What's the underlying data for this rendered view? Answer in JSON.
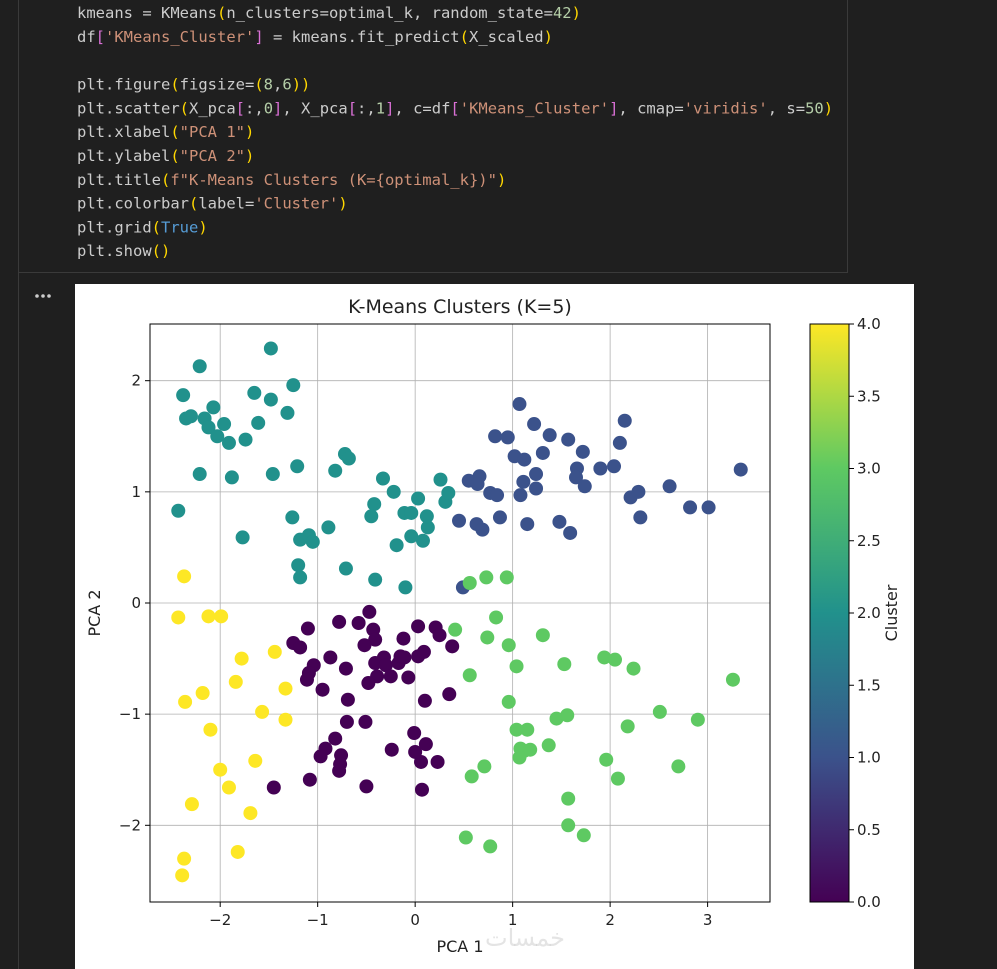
{
  "code_blocks": [
    [
      "kmeans = KMeans(n_clusters=optimal_k, random_state=42)",
      "df['KMeans_Cluster'] = kmeans.fit_predict(X_scaled)"
    ],
    [
      "plt.figure(figsize=(8,6))",
      "plt.scatter(X_pca[:,0], X_pca[:,1], c=df['KMeans_Cluster'], cmap='viridis', s=50)",
      "plt.xlabel(\"PCA 1\")",
      "plt.ylabel(\"PCA 2\")",
      "plt.title(f\"K-Means Clusters (K={optimal_k})\")",
      "plt.colorbar(label='Cluster')",
      "plt.grid(True)",
      "plt.show()"
    ]
  ],
  "watermark": "خمسات",
  "chart_data": {
    "type": "scatter",
    "title": "K-Means Clusters (K=5)",
    "x_label": "PCA 1",
    "y_label": "PCA 2",
    "colorbar_label": "Cluster",
    "colormap": "viridis",
    "clim": [
      0,
      4
    ],
    "cticks": [
      {
        "value": 0,
        "label": "0.0"
      },
      0.5,
      {
        "value": 1,
        "label": "1.0"
      },
      1.5,
      {
        "value": 2,
        "label": "2.0"
      },
      2.5,
      {
        "value": 3,
        "label": "3.0"
      },
      3.5,
      {
        "value": 4,
        "label": "4.0"
      }
    ],
    "xlim": [
      -2.72,
      3.64
    ],
    "ylim": [
      -2.69,
      2.51
    ],
    "xticks": [
      {
        "value": -2,
        "label": "−2"
      },
      {
        "value": -1,
        "label": "−1"
      },
      0,
      1,
      2,
      3
    ],
    "yticks": [
      {
        "value": -2,
        "label": "−2"
      },
      {
        "value": -1,
        "label": "−1"
      },
      0,
      1,
      2
    ],
    "grid": true,
    "x": [
      -1.48,
      -2.21,
      -2.38,
      -2.07,
      -2.16,
      -2.35,
      -2.3,
      -2.12,
      -1.96,
      -2.03,
      -1.91,
      -1.74,
      -1.61,
      -1.65,
      -1.48,
      -1.25,
      -1.31,
      -2.21,
      -1.88,
      -1.46,
      -1.21,
      -1.77,
      -1.26,
      -1.18,
      -1.09,
      -1.05,
      -0.89,
      -1.2,
      -1.18,
      -0.71,
      -0.41,
      -0.1,
      -2.43,
      -0.82,
      -0.72,
      -0.68,
      -0.33,
      -0.42,
      -0.45,
      -0.22,
      -0.11,
      0.03,
      -0.04,
      -0.19,
      0.08,
      0.13,
      -0.04,
      0.12,
      0.26,
      0.31,
      0.34,
      1.07,
      1.22,
      1.38,
      1.57,
      1.72,
      1.66,
      1.65,
      1.74,
      1.9,
      2.04,
      2.1,
      2.15,
      2.21,
      2.29,
      2.31,
      2.61,
      2.82,
      3.01,
      3.34,
      0.82,
      0.95,
      1.02,
      1.12,
      1.31,
      1.24,
      1.24,
      1.08,
      1.11,
      1.48,
      1.59,
      0.77,
      0.84,
      0.66,
      0.55,
      0.64,
      0.45,
      0.63,
      0.69,
      0.87,
      1.15,
      0.49,
      -0.47,
      -0.58,
      -0.78,
      -1.1,
      -1.25,
      -1.18,
      -1.04,
      -1.09,
      -1.11,
      -0.95,
      -0.71,
      -0.87,
      -0.43,
      -0.41,
      -0.52,
      -0.32,
      -0.41,
      -0.3,
      -0.17,
      -0.12,
      -0.15,
      -0.11,
      0.03,
      0.03,
      0.21,
      0.25,
      0.38,
      -0.39,
      -0.48,
      -0.25,
      -0.07,
      0.1,
      0.35,
      -0.69,
      -0.7,
      -0.51,
      -0.82,
      -0.92,
      -0.97,
      -0.76,
      -0.77,
      -1.08,
      -0.78,
      -1.45,
      -0.5,
      -0.24,
      -0.01,
      0.11,
      0.23,
      0.06,
      0.0,
      0.07,
      0.09,
      0.56,
      0.73,
      0.94,
      0.83,
      0.41,
      0.74,
      0.96,
      1.31,
      1.04,
      0.56,
      0.96,
      1.53,
      1.94,
      2.05,
      2.24,
      3.26,
      1.45,
      1.56,
      1.04,
      1.08,
      1.15,
      1.12,
      1.37,
      1.07,
      1.18,
      2.18,
      2.51,
      2.9,
      1.96,
      2.08,
      2.7,
      0.58,
      0.71,
      1.57,
      1.57,
      1.73,
      0.52,
      0.77,
      -2.37,
      -2.43,
      -2.12,
      -1.99,
      -1.78,
      -1.44,
      -1.84,
      -2.18,
      -2.36,
      -1.33,
      -2.1,
      -1.57,
      -1.33,
      -1.64,
      -2.0,
      -1.91,
      -2.29,
      -1.69,
      -1.82,
      -2.37,
      -2.39
    ],
    "y": [
      2.29,
      2.13,
      1.87,
      1.76,
      1.66,
      1.66,
      1.68,
      1.58,
      1.61,
      1.5,
      1.44,
      1.47,
      1.62,
      1.89,
      1.83,
      1.96,
      1.71,
      1.16,
      1.13,
      1.16,
      1.23,
      0.59,
      0.77,
      0.57,
      0.61,
      0.55,
      0.68,
      0.34,
      0.23,
      0.31,
      0.21,
      0.14,
      0.83,
      1.19,
      1.34,
      1.3,
      1.12,
      0.89,
      0.78,
      1.0,
      0.81,
      0.94,
      0.81,
      0.52,
      0.56,
      0.68,
      0.6,
      0.78,
      1.11,
      0.91,
      0.99,
      1.79,
      1.61,
      1.51,
      1.47,
      1.36,
      1.21,
      1.13,
      1.05,
      1.21,
      1.23,
      1.44,
      1.64,
      0.95,
      1.0,
      0.77,
      1.05,
      0.86,
      0.86,
      1.2,
      1.5,
      1.49,
      1.32,
      1.29,
      1.35,
      1.03,
      1.16,
      0.97,
      1.09,
      0.73,
      0.63,
      0.99,
      0.97,
      1.14,
      1.1,
      1.07,
      0.74,
      0.71,
      0.66,
      0.77,
      0.71,
      0.14,
      -0.08,
      -0.18,
      -0.17,
      -0.23,
      -0.36,
      -0.4,
      -0.56,
      -0.63,
      -0.69,
      -0.78,
      -0.59,
      -0.49,
      -0.24,
      -0.33,
      -0.38,
      -0.49,
      -0.54,
      -0.56,
      -0.54,
      -0.32,
      -0.48,
      -0.49,
      -0.48,
      -0.21,
      -0.22,
      -0.29,
      -0.39,
      -0.66,
      -0.72,
      -0.66,
      -0.67,
      -0.88,
      -0.82,
      -0.87,
      -1.07,
      -1.07,
      -1.22,
      -1.31,
      -1.38,
      -1.37,
      -1.45,
      -1.59,
      -1.51,
      -1.66,
      -1.65,
      -1.32,
      -1.17,
      -1.27,
      -1.43,
      -1.43,
      -1.34,
      -1.68,
      -0.44,
      0.18,
      0.23,
      0.23,
      -0.13,
      -0.24,
      -0.31,
      -0.38,
      -0.29,
      -0.57,
      -0.65,
      -0.89,
      -0.55,
      -0.49,
      -0.51,
      -0.59,
      -0.69,
      -1.04,
      -1.01,
      -1.14,
      -1.31,
      -1.14,
      -1.33,
      -1.28,
      -1.39,
      -1.32,
      -1.11,
      -0.98,
      -1.05,
      -1.41,
      -1.58,
      -1.47,
      -1.56,
      -1.47,
      -1.76,
      -2.0,
      -2.09,
      -2.11,
      -2.19,
      0.24,
      -0.13,
      -0.12,
      -0.12,
      -0.5,
      -0.44,
      -0.71,
      -0.81,
      -0.89,
      -0.77,
      -1.14,
      -0.98,
      -1.05,
      -1.42,
      -1.5,
      -1.66,
      -1.81,
      -1.89,
      -2.24,
      -2.3,
      -2.45
    ],
    "c": [
      2,
      2,
      2,
      2,
      2,
      2,
      2,
      2,
      2,
      2,
      2,
      2,
      2,
      2,
      2,
      2,
      2,
      2,
      2,
      2,
      2,
      2,
      2,
      2,
      2,
      2,
      2,
      2,
      2,
      2,
      2,
      2,
      2,
      2,
      2,
      2,
      2,
      2,
      2,
      2,
      2,
      2,
      2,
      2,
      2,
      2,
      2,
      2,
      2,
      2,
      2,
      1,
      1,
      1,
      1,
      1,
      1,
      1,
      1,
      1,
      1,
      1,
      1,
      1,
      1,
      1,
      1,
      1,
      1,
      1,
      1,
      1,
      1,
      1,
      1,
      1,
      1,
      1,
      1,
      1,
      1,
      1,
      1,
      1,
      1,
      1,
      1,
      1,
      1,
      1,
      1,
      1,
      0,
      0,
      0,
      0,
      0,
      0,
      0,
      0,
      0,
      0,
      0,
      0,
      0,
      0,
      0,
      0,
      0,
      0,
      0,
      0,
      0,
      0,
      0,
      0,
      0,
      0,
      0,
      0,
      0,
      0,
      0,
      0,
      0,
      0,
      0,
      0,
      0,
      0,
      0,
      0,
      0,
      0,
      0,
      0,
      0,
      0,
      0,
      0,
      0,
      0,
      0,
      0,
      0,
      3,
      3,
      3,
      3,
      3,
      3,
      3,
      3,
      3,
      3,
      3,
      3,
      3,
      3,
      3,
      3,
      3,
      3,
      3,
      3,
      3,
      3,
      3,
      3,
      3,
      3,
      3,
      3,
      3,
      3,
      3,
      3,
      3,
      3,
      3,
      3,
      3,
      3,
      4,
      4,
      4,
      4,
      4,
      4,
      4,
      4,
      4,
      4,
      4,
      4,
      4,
      4,
      4,
      4,
      4,
      4,
      4,
      4,
      4
    ]
  }
}
